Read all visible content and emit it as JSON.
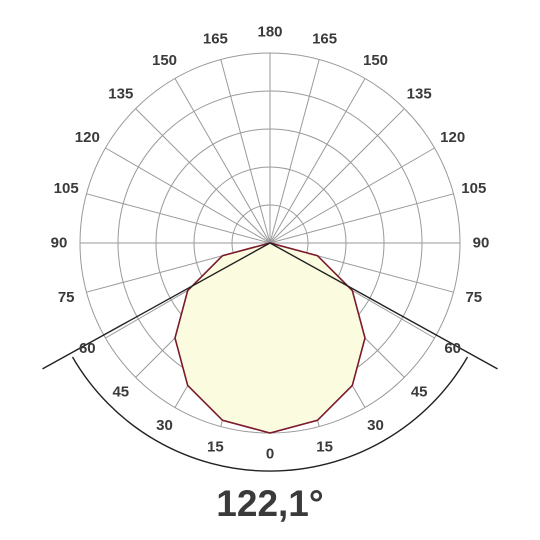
{
  "chart_data": {
    "type": "polar",
    "angle_tick_labels": [
      "180",
      "165",
      "150",
      "135",
      "120",
      "105",
      "90",
      "75",
      "60",
      "45",
      "30",
      "15",
      "0",
      "15",
      "30",
      "45",
      "60",
      "75",
      "90",
      "105",
      "120",
      "135",
      "150",
      "165"
    ],
    "angle_ticks_deg": [
      180,
      165,
      150,
      135,
      120,
      105,
      90,
      75,
      60,
      45,
      30,
      15,
      0,
      -15,
      -30,
      -45,
      -60,
      -75,
      -90,
      -105,
      -120,
      -135,
      -150,
      -165
    ],
    "grid": true,
    "radial_rings": 5,
    "beam_angle_deg": 122.1,
    "beam_label": "122,1°",
    "series": [
      {
        "curve": "intensity",
        "angles_deg": [
          0,
          15,
          30,
          45,
          60,
          75,
          90
        ],
        "relative_intensity": [
          1.0,
          0.966,
          0.866,
          0.707,
          0.5,
          0.259,
          0.0
        ],
        "symmetric": true
      }
    ],
    "colors": {
      "fill": "#fbfbe0",
      "curve": "#7a1a2a",
      "grid": "#9a9a9a",
      "beam": "#222222",
      "text": "#3a3a3a"
    }
  }
}
